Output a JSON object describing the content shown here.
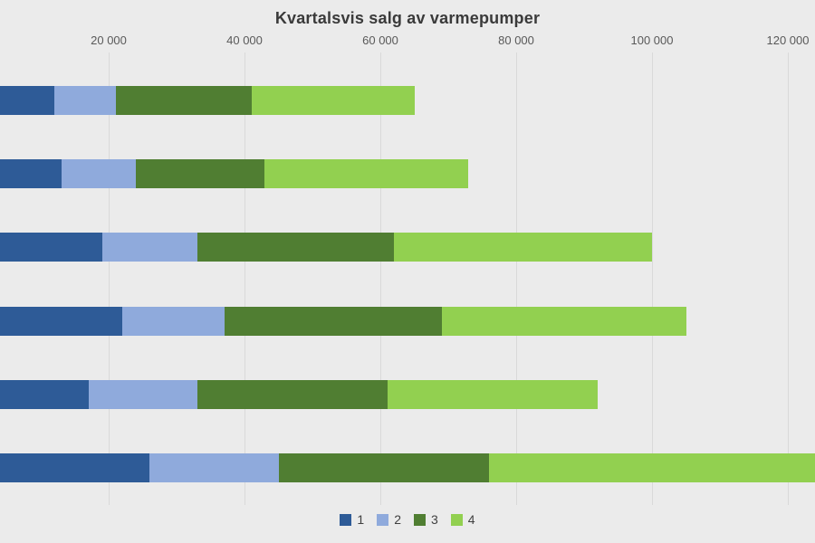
{
  "chart": {
    "background_color": "#ebebeb",
    "grid_color": "#d9d9d9",
    "tick_text_color": "#595959",
    "title_color": "#3a3a3a"
  },
  "chart_data": {
    "type": "bar",
    "orientation": "horizontal",
    "stacked": true,
    "title": "Kvartalsvis salg av varmepumper",
    "xlabel": "",
    "ylabel": "",
    "xlim": [
      0,
      124000
    ],
    "grid": true,
    "axis_labels_position": "top",
    "legend_position": "bottom",
    "categories": [
      "",
      "",
      "",
      "",
      "",
      ""
    ],
    "x_ticks": [
      {
        "value": 20000,
        "label": "20 000"
      },
      {
        "value": 40000,
        "label": "40 000"
      },
      {
        "value": 60000,
        "label": "60 000"
      },
      {
        "value": 80000,
        "label": "80 000"
      },
      {
        "value": 100000,
        "label": "100 000"
      },
      {
        "value": 120000,
        "label": "120 000"
      }
    ],
    "series": [
      {
        "name": "1",
        "color": "#2e5b97",
        "values": [
          12000,
          13000,
          19000,
          22000,
          17000,
          26000
        ]
      },
      {
        "name": "2",
        "color": "#8faadc",
        "values": [
          9000,
          11000,
          14000,
          15000,
          16000,
          19000
        ]
      },
      {
        "name": "3",
        "color": "#507e32",
        "values": [
          20000,
          19000,
          29000,
          32000,
          28000,
          31000
        ]
      },
      {
        "name": "4",
        "color": "#92d050",
        "values": [
          24000,
          30000,
          38000,
          36000,
          31000,
          52000
        ]
      }
    ],
    "totals": [
      65000,
      73000,
      100000,
      105000,
      92000,
      128000
    ]
  }
}
